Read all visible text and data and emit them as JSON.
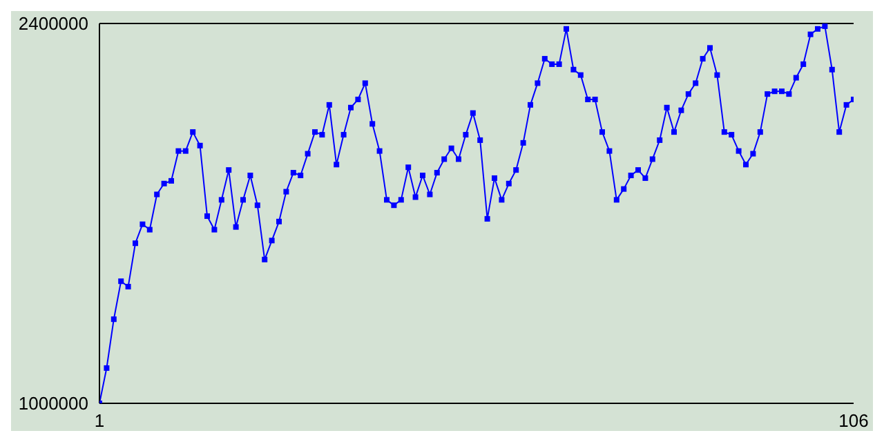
{
  "chart_data": {
    "type": "line",
    "x": [
      1,
      2,
      3,
      4,
      5,
      6,
      7,
      8,
      9,
      10,
      11,
      12,
      13,
      14,
      15,
      16,
      17,
      18,
      19,
      20,
      21,
      22,
      23,
      24,
      25,
      26,
      27,
      28,
      29,
      30,
      31,
      32,
      33,
      34,
      35,
      36,
      37,
      38,
      39,
      40,
      41,
      42,
      43,
      44,
      45,
      46,
      47,
      48,
      49,
      50,
      51,
      52,
      53,
      54,
      55,
      56,
      57,
      58,
      59,
      60,
      61,
      62,
      63,
      64,
      65,
      66,
      67,
      68,
      69,
      70,
      71,
      72,
      73,
      74,
      75,
      76,
      77,
      78,
      79,
      80,
      81,
      82,
      83,
      84,
      85,
      86,
      87,
      88,
      89,
      90,
      91,
      92,
      93,
      94,
      95,
      96,
      97,
      98,
      99,
      100,
      101,
      102,
      103,
      104,
      105,
      106
    ],
    "series": [
      {
        "color": "#0000ff",
        "values": [
          1000000,
          1130000,
          1310000,
          1450000,
          1430000,
          1590000,
          1660000,
          1640000,
          1770000,
          1810000,
          1820000,
          1930000,
          1930000,
          2000000,
          1950000,
          1690000,
          1640000,
          1750000,
          1860000,
          1650000,
          1750000,
          1840000,
          1730000,
          1530000,
          1600000,
          1670000,
          1780000,
          1850000,
          1840000,
          1920000,
          2000000,
          1990000,
          2100000,
          1880000,
          1990000,
          2090000,
          2120000,
          2180000,
          2030000,
          1930000,
          1750000,
          1730000,
          1750000,
          1870000,
          1760000,
          1840000,
          1770000,
          1850000,
          1900000,
          1940000,
          1900000,
          1990000,
          2070000,
          1970000,
          1680000,
          1830000,
          1750000,
          1810000,
          1860000,
          1960000,
          2100000,
          2180000,
          2270000,
          2250000,
          2250000,
          2380000,
          2230000,
          2210000,
          2120000,
          2120000,
          2000000,
          1930000,
          1750000,
          1790000,
          1840000,
          1860000,
          1830000,
          1900000,
          1970000,
          2090000,
          2000000,
          2080000,
          2140000,
          2180000,
          2270000,
          2310000,
          2210000,
          2000000,
          1990000,
          1930000,
          1880000,
          1920000,
          2000000,
          2140000,
          2150000,
          2150000,
          2140000,
          2200000,
          2250000,
          2360000,
          2380000,
          2390000,
          2230000,
          2000000,
          2100000,
          2120000
        ]
      }
    ],
    "xlim": [
      1,
      106
    ],
    "xticks": [
      1,
      106
    ],
    "ylim": [
      1000000,
      2400000
    ],
    "yticks": [
      1000000,
      2400000
    ],
    "marker": "square",
    "line_style": "solid",
    "grid": false,
    "legend": false
  }
}
